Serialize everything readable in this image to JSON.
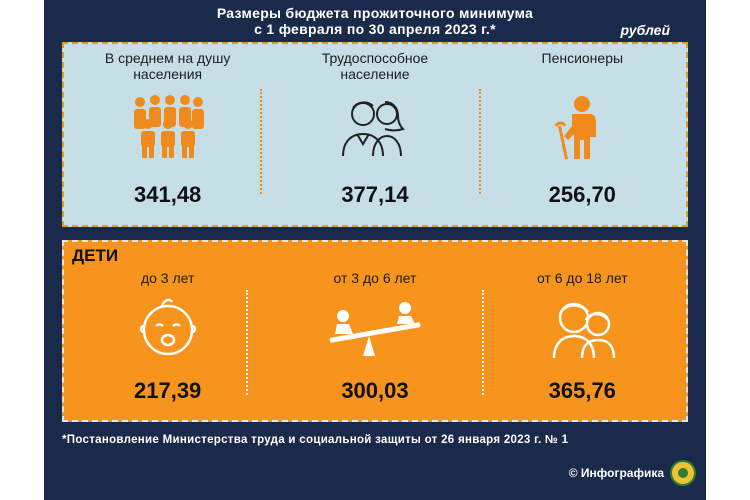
{
  "header": {
    "title_line1": "Размеры бюджета прожиточного минимума",
    "title_line2": "с 1 февраля по 30 апреля 2023 г.*",
    "unit": "рублей"
  },
  "adults": {
    "items": [
      {
        "label": "В среднем на душу населения",
        "value": "341,48",
        "icon": "group-people-icon"
      },
      {
        "label": "Трудоспособное население",
        "value": "377,14",
        "icon": "couple-icon"
      },
      {
        "label": "Пенсионеры",
        "value": "256,70",
        "icon": "elderly-person-icon"
      }
    ]
  },
  "children": {
    "title": "ДЕТИ",
    "items": [
      {
        "label": "до 3 лет",
        "value": "217,39",
        "icon": "baby-face-icon"
      },
      {
        "label": "от 3 до 6 лет",
        "value": "300,03",
        "icon": "seesaw-icon"
      },
      {
        "label": "от 6 до 18 лет",
        "value": "365,76",
        "icon": "teenagers-icon"
      }
    ]
  },
  "footnote": "*Постановление Министерства труда и социальной защиты от 26 января 2023 г. № 1",
  "brand": "© Инфографика",
  "colors": {
    "background": "#1a2a4a",
    "top_panel": "#c6dfe6",
    "bottom_panel": "#f7941d",
    "accent": "#f08a1c"
  }
}
